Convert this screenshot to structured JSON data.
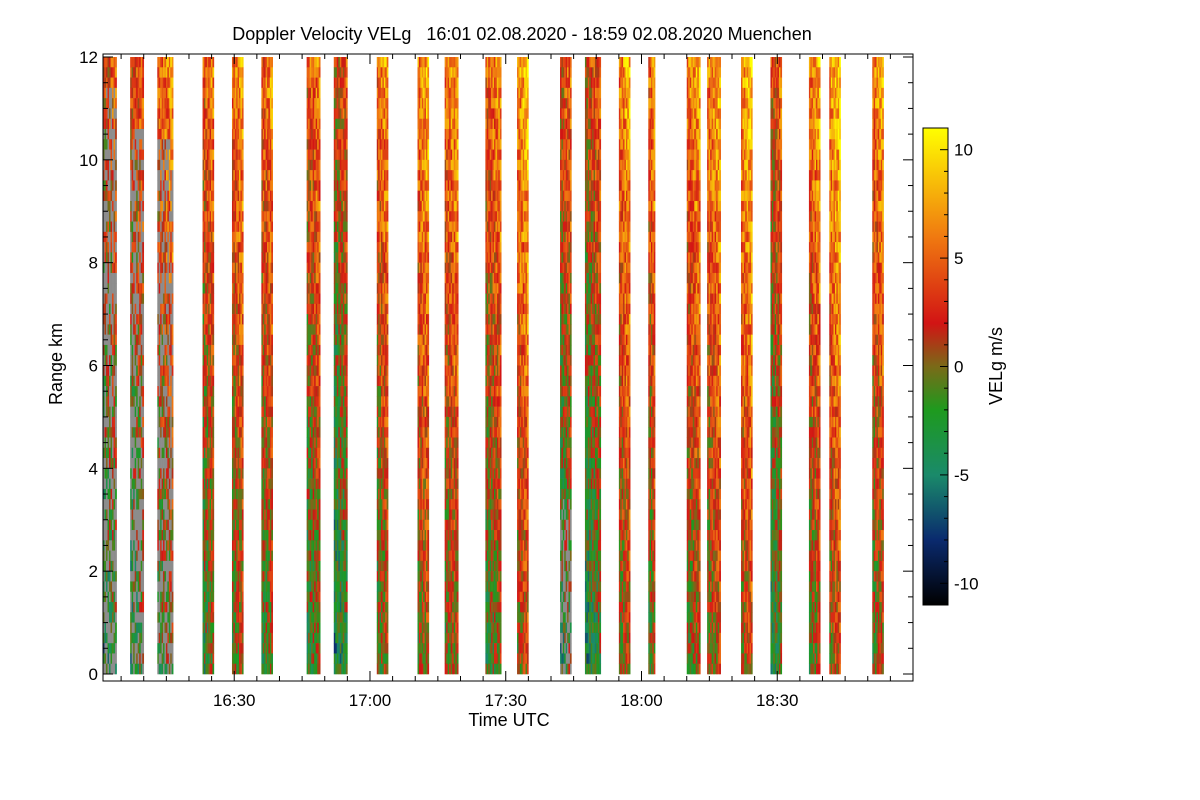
{
  "chart_data": {
    "type": "heatmap",
    "title": "Doppler Velocity VELg   16:01 02.08.2020 - 18:59 02.08.2020 Muenchen",
    "xlabel": "Time UTC",
    "ylabel": "Range km",
    "xlim_minutes": [
      961,
      1140
    ],
    "ylim": [
      0,
      12
    ],
    "x_ticks": [
      {
        "minutes": 990,
        "label": "16:30"
      },
      {
        "minutes": 1020,
        "label": "17:00"
      },
      {
        "minutes": 1050,
        "label": "17:30"
      },
      {
        "minutes": 1080,
        "label": "18:00"
      },
      {
        "minutes": 1110,
        "label": "18:30"
      }
    ],
    "y_ticks": [
      {
        "value": 0,
        "label": "0"
      },
      {
        "value": 2,
        "label": "2"
      },
      {
        "value": 4,
        "label": "4"
      },
      {
        "value": 6,
        "label": "6"
      },
      {
        "value": 8,
        "label": "8"
      },
      {
        "value": 10,
        "label": "10"
      },
      {
        "value": 12,
        "label": "12"
      }
    ],
    "colorbar": {
      "label": "VELg m/s",
      "range": [
        -11,
        11
      ],
      "ticks": [
        {
          "value": 10,
          "label": "10"
        },
        {
          "value": 5,
          "label": "5"
        },
        {
          "value": 0,
          "label": "0"
        },
        {
          "value": -5,
          "label": "-5"
        },
        {
          "value": -10,
          "label": "-10"
        }
      ],
      "stops": [
        {
          "value": -11,
          "color": "#000000"
        },
        {
          "value": -8,
          "color": "#0a2a6e"
        },
        {
          "value": -5,
          "color": "#1a8a6a"
        },
        {
          "value": -2,
          "color": "#1e9a1e"
        },
        {
          "value": 0,
          "color": "#7a6a18"
        },
        {
          "value": 2,
          "color": "#d21414"
        },
        {
          "value": 6,
          "color": "#f07a10"
        },
        {
          "value": 11,
          "color": "#ffff00"
        }
      ]
    },
    "no_signal_color": "#8c8c8c",
    "segments": [
      {
        "start_min": 961.0,
        "end_min": 964.0,
        "noise_top_km": 11.5,
        "mean_velocity": 0.5,
        "has_noise": true
      },
      {
        "start_min": 967.0,
        "end_min": 970.0,
        "noise_top_km": 10.7,
        "mean_velocity": 1.0,
        "has_noise": true
      },
      {
        "start_min": 973.0,
        "end_min": 976.5,
        "noise_top_km": 10.5,
        "mean_velocity": 2.5,
        "has_noise": true
      },
      {
        "start_min": 983.0,
        "end_min": 985.5,
        "noise_top_km": 0,
        "mean_velocity": 2.0,
        "has_noise": false
      },
      {
        "start_min": 989.5,
        "end_min": 992.0,
        "noise_top_km": 0,
        "mean_velocity": 3.0,
        "has_noise": false
      },
      {
        "start_min": 996.0,
        "end_min": 998.5,
        "noise_top_km": 0,
        "mean_velocity": 2.5,
        "has_noise": false
      },
      {
        "start_min": 1006.0,
        "end_min": 1009.0,
        "noise_top_km": 0,
        "mean_velocity": 2.0,
        "has_noise": false
      },
      {
        "start_min": 1012.0,
        "end_min": 1015.0,
        "noise_top_km": 0,
        "mean_velocity": 0.0,
        "has_noise": false
      },
      {
        "start_min": 1021.5,
        "end_min": 1024.0,
        "noise_top_km": 0,
        "mean_velocity": 3.0,
        "has_noise": false
      },
      {
        "start_min": 1030.5,
        "end_min": 1033.0,
        "noise_top_km": 0,
        "mean_velocity": 4.0,
        "has_noise": false
      },
      {
        "start_min": 1036.5,
        "end_min": 1039.5,
        "noise_top_km": 0,
        "mean_velocity": 3.5,
        "has_noise": false
      },
      {
        "start_min": 1045.5,
        "end_min": 1049.0,
        "noise_top_km": 0,
        "mean_velocity": 2.5,
        "has_noise": false
      },
      {
        "start_min": 1052.5,
        "end_min": 1055.0,
        "noise_top_km": 0,
        "mean_velocity": 4.5,
        "has_noise": false
      },
      {
        "start_min": 1062.0,
        "end_min": 1064.5,
        "noise_top_km": 3.5,
        "mean_velocity": 1.0,
        "has_noise": true
      },
      {
        "start_min": 1067.5,
        "end_min": 1071.0,
        "noise_top_km": 0,
        "mean_velocity": 0.5,
        "has_noise": false
      },
      {
        "start_min": 1075.0,
        "end_min": 1077.5,
        "noise_top_km": 0,
        "mean_velocity": 4.0,
        "has_noise": false
      },
      {
        "start_min": 1081.5,
        "end_min": 1083.0,
        "noise_top_km": 0,
        "mean_velocity": 3.0,
        "has_noise": false
      },
      {
        "start_min": 1090.0,
        "end_min": 1093.0,
        "noise_top_km": 0,
        "mean_velocity": 3.5,
        "has_noise": false
      },
      {
        "start_min": 1094.5,
        "end_min": 1097.5,
        "noise_top_km": 0,
        "mean_velocity": 4.0,
        "has_noise": false
      },
      {
        "start_min": 1102.0,
        "end_min": 1104.5,
        "noise_top_km": 0,
        "mean_velocity": 5.0,
        "has_noise": false
      },
      {
        "start_min": 1108.5,
        "end_min": 1111.0,
        "noise_top_km": 0,
        "mean_velocity": 1.0,
        "has_noise": false
      },
      {
        "start_min": 1117.0,
        "end_min": 1119.5,
        "noise_top_km": 0,
        "mean_velocity": 3.5,
        "has_noise": false
      },
      {
        "start_min": 1121.5,
        "end_min": 1124.0,
        "noise_top_km": 0,
        "mean_velocity": 5.0,
        "has_noise": false
      },
      {
        "start_min": 1131.0,
        "end_min": 1133.5,
        "noise_top_km": 0,
        "mean_velocity": 3.5,
        "has_noise": false
      }
    ]
  }
}
